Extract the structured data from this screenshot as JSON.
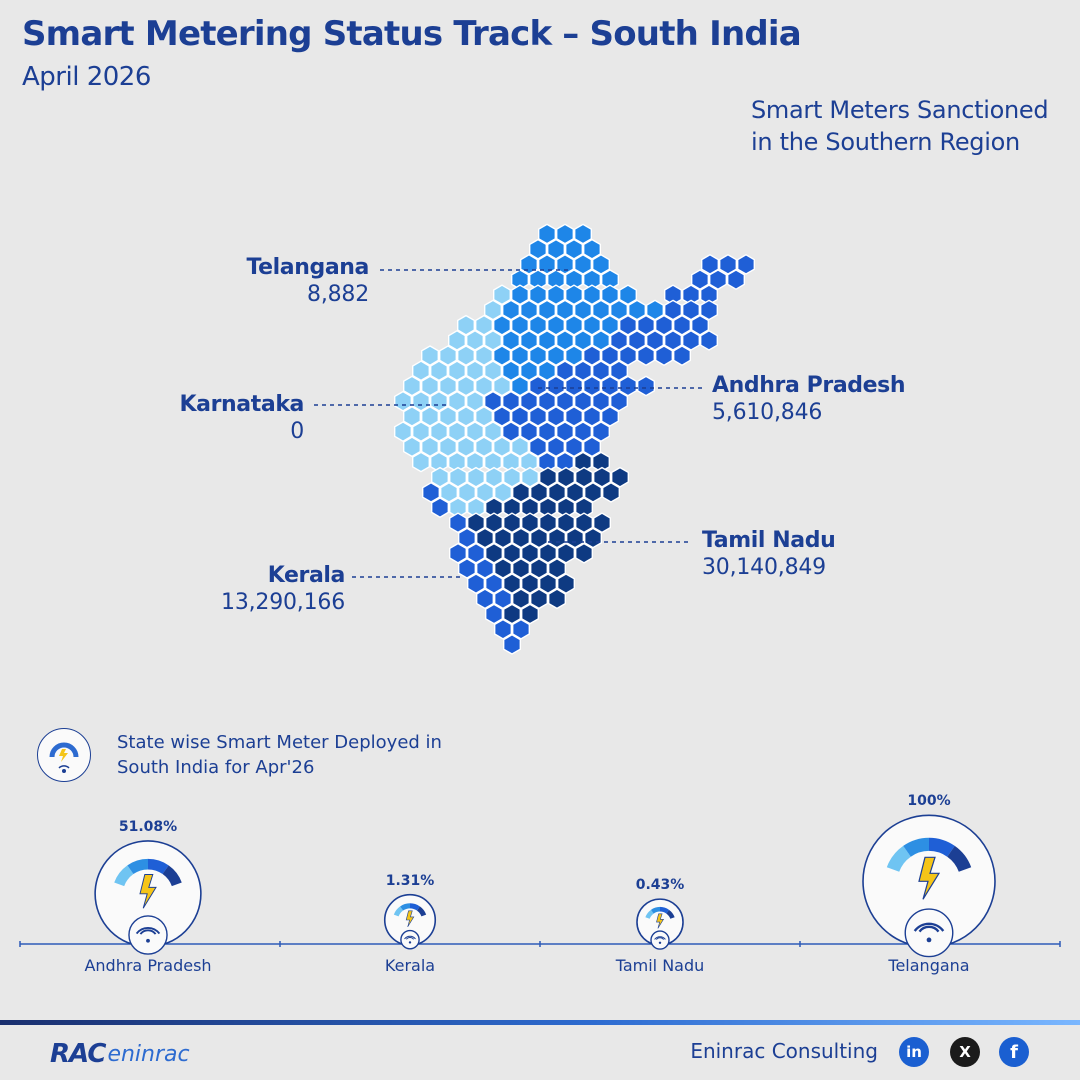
{
  "header": {
    "title": "Smart Metering Status Track – South India",
    "subtitle": "April 2026"
  },
  "map": {
    "heading": "Smart Meters Sanctioned in the Southern Region",
    "states": [
      {
        "name": "Telangana",
        "value": "8,882",
        "color": "#1e86e8"
      },
      {
        "name": "Karnataka",
        "value": "0",
        "color": "#8ed1f6"
      },
      {
        "name": "Andhra Pradesh",
        "value": "5,610,846",
        "color": "#1f5fd6"
      },
      {
        "name": "Tamil Nadu",
        "value": "30,140,849",
        "color": "#0e3a82"
      },
      {
        "name": "Kerala",
        "value": "13,290,166",
        "color": "#1f5fd6"
      }
    ]
  },
  "deployment": {
    "heading": "State wise Smart Meter Deployed in South India for Apr'26",
    "icon": "smart-meter-icon"
  },
  "chart_data": {
    "type": "bar",
    "title": "State wise Smart Meter Deployed in South India for Apr'26",
    "categories": [
      "Andhra Pradesh",
      "Kerala",
      "Tamil Nadu",
      "Telangana"
    ],
    "values": [
      51.08,
      1.31,
      0.43,
      100
    ],
    "value_labels": [
      "51.08%",
      "1.31%",
      "0.43%",
      "100%"
    ],
    "unit": "%",
    "ylim": [
      0,
      100
    ],
    "mark": "smart-meter-gauge-icon"
  },
  "footer": {
    "logo_main": "RAC",
    "logo_sub": "eninrac",
    "company": "Eninrac Consulting",
    "social": [
      {
        "icon": "linkedin-icon",
        "glyph": "in"
      },
      {
        "icon": "x-icon",
        "glyph": "X"
      },
      {
        "icon": "facebook-icon",
        "glyph": "f"
      }
    ]
  }
}
